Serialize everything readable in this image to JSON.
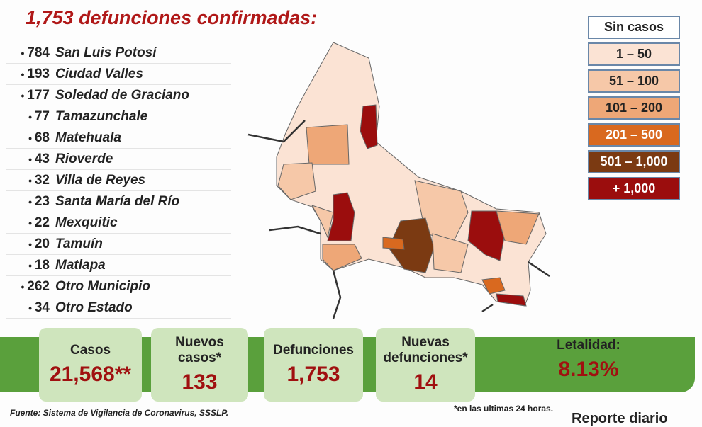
{
  "title": "1,753 defunciones confirmadas:",
  "municipalities": [
    {
      "count": "784",
      "name": "San Luis Potosí"
    },
    {
      "count": "193",
      "name": "Ciudad Valles"
    },
    {
      "count": "177",
      "name": "Soledad de Graciano"
    },
    {
      "count": "77",
      "name": "Tamazunchale"
    },
    {
      "count": "68",
      "name": "Matehuala"
    },
    {
      "count": "43",
      "name": "Rioverde"
    },
    {
      "count": "32",
      "name": "Villa de Reyes"
    },
    {
      "count": "23",
      "name": "Santa María del Río"
    },
    {
      "count": "22",
      "name": "Mexquitic"
    },
    {
      "count": "20",
      "name": "Tamuín"
    },
    {
      "count": "18",
      "name": "Matlapa"
    },
    {
      "count": "262",
      "name": "Otro Municipio"
    },
    {
      "count": "34",
      "name": "Otro Estado"
    }
  ],
  "legend": [
    {
      "label": "Sin casos",
      "color": "#ffffff"
    },
    {
      "label": "1 – 50",
      "color": "#fbe3d4"
    },
    {
      "label": "51 – 100",
      "color": "#f6c8a8"
    },
    {
      "label": "101 – 200",
      "color": "#eea777"
    },
    {
      "label": "201 – 500",
      "color": "#d9691f"
    },
    {
      "label": "501 – 1,000",
      "color": "#7b3a12"
    },
    {
      "label": "+ 1,000",
      "color": "#9b0d0d"
    }
  ],
  "stats": [
    {
      "label": "Casos",
      "value": "21,568**"
    },
    {
      "label": "Nuevos casos*",
      "value": "133"
    },
    {
      "label": "Defunciones",
      "value": "1,753"
    },
    {
      "label": "Nuevas defunciones*",
      "value": "14"
    },
    {
      "label": "Letalidad:",
      "value": "8.13%"
    }
  ],
  "footnotes": {
    "source": "Fuente: Sistema de Vigilancia de Coronavirus, SSSLP.",
    "note": "*en las ultimas 24 horas.",
    "report": "Reporte diario"
  }
}
